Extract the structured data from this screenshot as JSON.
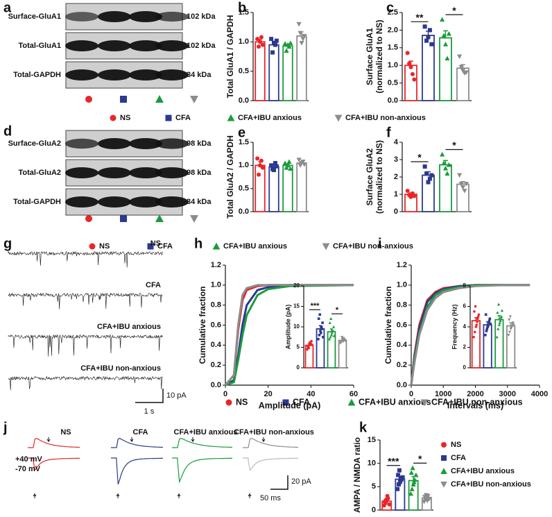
{
  "panel_labels": [
    "a",
    "b",
    "c",
    "d",
    "e",
    "f",
    "g",
    "h",
    "i",
    "j",
    "k"
  ],
  "groups": [
    {
      "name": "NS",
      "color": "#e8262a",
      "marker": "circle"
    },
    {
      "name": "CFA",
      "color": "#2b3990",
      "marker": "square"
    },
    {
      "name": "CFA+IBU anxious",
      "color": "#1a9b3c",
      "marker": "triangle-up"
    },
    {
      "name": "CFA+IBU non-anxious",
      "color": "#8c8c8c",
      "marker": "triangle-down"
    }
  ],
  "blots": [
    {
      "rows": [
        {
          "label": "Surface-GluA1",
          "size": "102 kDa"
        },
        {
          "label": "Total-GluA1",
          "size": "102 kDa"
        },
        {
          "label": "Total-GAPDH",
          "size": "34 kDa"
        }
      ]
    },
    {
      "rows": [
        {
          "label": "Surface-GluA2",
          "size": "98 kDa"
        },
        {
          "label": "Total-GluA2",
          "size": "98 kDa"
        },
        {
          "label": "Total-GAPDH",
          "size": "34 kDa"
        }
      ]
    }
  ],
  "traces_g": {
    "scale_y": "10 pA",
    "scale_x": "1 s"
  },
  "traces_j": {
    "holding": [
      "+40 mV",
      "-70 mV"
    ],
    "scale_y": "20 pA",
    "scale_x": "50 ms"
  },
  "chart_data": [
    {
      "type": "bar",
      "ylabel": "Total GluA1 / GAPDH",
      "values": [
        1.0,
        0.95,
        0.93,
        1.1
      ],
      "errors": [
        0.04,
        0.06,
        0.03,
        0.07
      ],
      "points": [
        [
          1.05,
          0.92,
          1.0,
          1.08,
          0.95
        ],
        [
          1.05,
          0.82,
          0.98,
          0.95,
          1.02
        ],
        [
          0.97,
          0.85,
          0.95,
          0.92,
          0.98
        ],
        [
          1.3,
          1.15,
          0.98,
          1.05,
          1.1
        ]
      ],
      "ylim": [
        0,
        1.5
      ],
      "yticks": [
        {
          "value": 0,
          "label": "0.0"
        },
        0.5,
        {
          "value": 1,
          "label": "1.0"
        },
        1.5
      ],
      "annotations": []
    },
    {
      "type": "bar",
      "ylabel": [
        "Surface GluA1",
        "(normalized to NS)"
      ],
      "values": [
        1.0,
        1.85,
        1.78,
        0.92
      ],
      "errors": [
        0.12,
        0.12,
        0.2,
        0.1
      ],
      "points": [
        [
          1.35,
          1.05,
          0.95,
          0.75,
          0.6
        ],
        [
          2.1,
          1.7,
          1.8,
          2.0,
          1.6
        ],
        [
          2.3,
          1.85,
          1.6,
          1.2,
          1.9
        ],
        [
          1.25,
          0.95,
          0.85,
          0.78,
          0.8
        ]
      ],
      "ylim": [
        0,
        2.5
      ],
      "yticks": [
        {
          "value": 0,
          "label": "0.0"
        },
        0.5,
        {
          "value": 1,
          "label": "1.0"
        },
        1.5,
        {
          "value": 2,
          "label": "2.0"
        },
        2.5
      ],
      "annotations": [
        {
          "text": "**",
          "between": [
            0,
            1
          ]
        },
        {
          "text": "*",
          "between": [
            2,
            3
          ]
        }
      ]
    },
    {
      "type": "bar",
      "ylabel": "Total GluA2 / GAPDH",
      "values": [
        1.0,
        0.97,
        1.0,
        1.05
      ],
      "errors": [
        0.08,
        0.04,
        0.03,
        0.03
      ],
      "points": [
        [
          1.15,
          0.8,
          1.0,
          1.1,
          0.95
        ],
        [
          1.0,
          0.92,
          0.9,
          1.05,
          0.98
        ],
        [
          1.05,
          0.95,
          1.0,
          1.08,
          0.93
        ],
        [
          1.12,
          1.0,
          1.05,
          1.08,
          1.02
        ]
      ],
      "ylim": [
        0,
        1.5
      ],
      "yticks": [
        {
          "value": 0,
          "label": "0.0"
        },
        0.5,
        {
          "value": 1,
          "label": "1.0"
        },
        1.5
      ],
      "annotations": []
    },
    {
      "type": "bar",
      "ylabel": [
        "Surface GluA2",
        "(normalized to NS)"
      ],
      "values": [
        1.0,
        2.1,
        2.7,
        1.58
      ],
      "errors": [
        0.08,
        0.2,
        0.25,
        0.15
      ],
      "points": [
        [
          1.2,
          0.95,
          0.85,
          1.05,
          0.9
        ],
        [
          2.6,
          2.2,
          1.7,
          1.9,
          2.1
        ],
        [
          3.3,
          2.8,
          2.5,
          2.2,
          2.7
        ],
        [
          2.1,
          1.6,
          1.4,
          1.2,
          1.6
        ]
      ],
      "ylim": [
        0,
        4
      ],
      "yticks": [
        0,
        1,
        2,
        3,
        4
      ],
      "annotations": [
        {
          "text": "*",
          "between": [
            0,
            1
          ]
        },
        {
          "text": "*",
          "between": [
            2,
            3
          ]
        }
      ]
    },
    {
      "type": "line",
      "xlabel": "Amplitude (pA)",
      "ylabel": "Cumulative  fraction",
      "x": [
        0,
        4,
        6,
        8,
        10,
        15,
        20,
        30,
        60
      ],
      "series": [
        {
          "values": [
            0,
            0.1,
            0.55,
            0.85,
            0.95,
            0.99,
            1,
            1,
            1
          ]
        },
        {
          "values": [
            0,
            0.05,
            0.3,
            0.6,
            0.8,
            0.95,
            0.98,
            1,
            1
          ]
        },
        {
          "values": [
            0,
            0.03,
            0.25,
            0.5,
            0.7,
            0.9,
            0.96,
            0.99,
            1
          ]
        },
        {
          "values": [
            0,
            0.1,
            0.6,
            0.9,
            0.97,
            1,
            1,
            1,
            1
          ]
        }
      ],
      "xlim": [
        0,
        60
      ],
      "xticks": [
        0,
        20,
        40,
        60
      ],
      "ylim": [
        0,
        1.2
      ],
      "yticks": [
        {
          "value": 0,
          "label": "0.0"
        },
        0.2,
        0.4,
        0.6,
        0.8,
        {
          "value": 1,
          "label": "1.0"
        },
        1.2
      ],
      "inset": {
        "type": "bar",
        "ylabel": "Amplitude (pA)",
        "values": [
          5.5,
          9.5,
          8.8,
          6.7
        ],
        "errors": [
          0.4,
          0.8,
          0.7,
          0.4
        ],
        "points": [
          [
            4.5,
            5,
            5.5,
            6,
            6.5,
            5.2,
            4.8,
            6.2,
            5.8,
            5.6
          ],
          [
            7,
            8,
            9,
            10,
            11,
            12,
            13,
            8.5,
            9.5,
            7.5
          ],
          [
            7,
            7.5,
            8,
            9,
            10,
            11,
            12,
            8.5,
            9,
            7.8
          ],
          [
            6,
            6.5,
            7,
            7.2,
            6.8,
            6.2,
            7.5,
            6.4,
            6.9,
            6.6
          ]
        ],
        "ylim": [
          0,
          20
        ],
        "yticks": [
          0,
          5,
          10,
          15,
          20
        ],
        "annotations": [
          {
            "text": "***",
            "between": [
              0,
              1
            ]
          },
          {
            "text": "*",
            "between": [
              2,
              3
            ]
          }
        ]
      }
    },
    {
      "type": "line",
      "xlabel": "Intervals (ms)",
      "ylabel": "Cumulative  fraction",
      "x": [
        0,
        100,
        250,
        500,
        750,
        1000,
        1500,
        2000,
        3000,
        3700
      ],
      "series": [
        {
          "values": [
            0,
            0.3,
            0.6,
            0.85,
            0.93,
            0.97,
            0.99,
            1,
            1,
            1
          ]
        },
        {
          "values": [
            0,
            0.28,
            0.57,
            0.83,
            0.92,
            0.96,
            0.99,
            1,
            1,
            1
          ]
        },
        {
          "values": [
            0,
            0.25,
            0.52,
            0.78,
            0.9,
            0.95,
            0.98,
            1,
            1,
            1
          ]
        },
        {
          "values": [
            0,
            0.22,
            0.5,
            0.75,
            0.87,
            0.93,
            0.97,
            0.99,
            1,
            1
          ]
        }
      ],
      "xlim": [
        0,
        4000
      ],
      "xticks": [
        0,
        1000,
        2000,
        3000,
        4000
      ],
      "ylim": [
        0,
        1.2
      ],
      "yticks": [
        {
          "value": 0,
          "label": "0.0"
        },
        0.2,
        0.4,
        0.6,
        0.8,
        {
          "value": 1,
          "label": "1.0"
        },
        1.2
      ],
      "inset": {
        "type": "bar",
        "ylabel": "Frequency (Hz)",
        "values": [
          4.6,
          4.2,
          4.7,
          4.1
        ],
        "errors": [
          0.3,
          0.3,
          0.4,
          0.3
        ],
        "points": [
          [
            3,
            3.5,
            4,
            4.5,
            5,
            5.5,
            6,
            4.2,
            4.8,
            5.2
          ],
          [
            3.2,
            3.6,
            4,
            4.4,
            4.8,
            5.2,
            3.8,
            4.1,
            4.6,
            4.3
          ],
          [
            3,
            3.8,
            4.2,
            4.6,
            5,
            5.4,
            6.2,
            4.4,
            4.9,
            5.6
          ],
          [
            3.2,
            3.5,
            3.8,
            4.1,
            4.4,
            4.7,
            5,
            3.9,
            4.3,
            4.2
          ]
        ],
        "ylim": [
          0,
          8
        ],
        "yticks": [
          0,
          2,
          4,
          6,
          8
        ],
        "annotations": []
      }
    },
    {
      "type": "bar",
      "ylabel": "AMPA / NMDA ratio",
      "values": [
        1.9,
        6.6,
        6.3,
        2.6
      ],
      "errors": [
        0.3,
        0.6,
        0.9,
        0.3
      ],
      "points": [
        [
          1,
          1.5,
          2,
          2.5,
          1.2,
          1.8,
          2.2,
          3
        ],
        [
          4.5,
          5.5,
          6,
          6.5,
          7,
          7.5,
          8.5,
          6.8
        ],
        [
          3.5,
          4.5,
          5.5,
          6.5,
          7.5,
          8,
          9,
          6
        ],
        [
          1.8,
          2.2,
          2.6,
          3,
          2.4,
          2.8,
          3.2,
          2
        ]
      ],
      "ylim": [
        0,
        15
      ],
      "yticks": [
        0,
        5,
        10,
        15
      ],
      "annotations": [
        {
          "text": "***",
          "between": [
            0,
            1
          ]
        },
        {
          "text": "*",
          "between": [
            2,
            3
          ]
        }
      ]
    }
  ]
}
